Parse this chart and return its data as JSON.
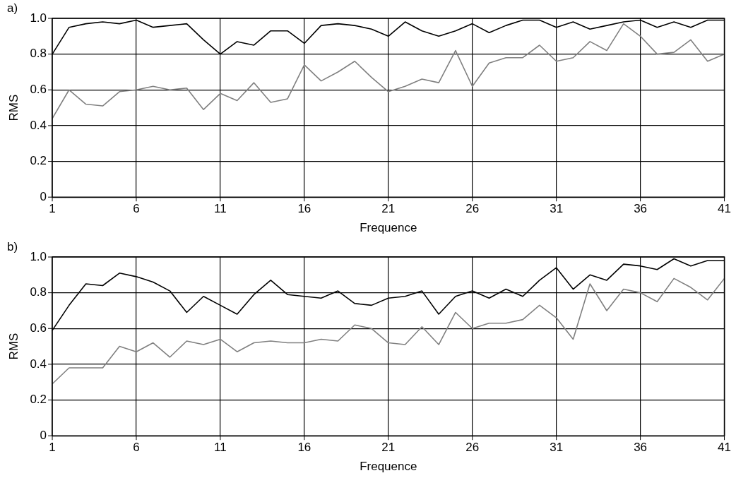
{
  "chart_data": [
    {
      "type": "line",
      "title": "a)",
      "xlabel": "Frequence",
      "ylabel": "RMS",
      "xlim": [
        1,
        41
      ],
      "xticks": [
        1,
        6,
        11,
        16,
        21,
        26,
        31,
        36,
        41
      ],
      "ylim": [
        0,
        1
      ],
      "yticks": [
        0,
        0.2,
        0.4,
        0.6,
        0.8,
        {
          "value": 1,
          "label": "1.0"
        }
      ],
      "grid": true,
      "legend": false,
      "marker": "none",
      "line_style": "solid",
      "x": [
        1,
        2,
        3,
        4,
        5,
        6,
        7,
        8,
        9,
        10,
        11,
        12,
        13,
        14,
        15,
        16,
        17,
        18,
        19,
        20,
        21,
        22,
        23,
        24,
        25,
        26,
        27,
        28,
        29,
        30,
        31,
        32,
        33,
        34,
        35,
        36,
        37,
        38,
        39,
        40,
        41
      ],
      "series": [
        {
          "color": "#000000",
          "values": [
            0.8,
            0.95,
            0.97,
            0.98,
            0.97,
            0.99,
            0.95,
            0.96,
            0.97,
            0.88,
            0.8,
            0.87,
            0.85,
            0.93,
            0.93,
            0.86,
            0.96,
            0.97,
            0.96,
            0.94,
            0.9,
            0.98,
            0.93,
            0.9,
            0.93,
            0.97,
            0.92,
            0.96,
            0.99,
            0.99,
            0.95,
            0.98,
            0.94,
            0.96,
            0.98,
            0.99,
            0.95,
            0.98,
            0.95,
            0.99,
            0.99
          ]
        },
        {
          "color": "#808080",
          "values": [
            0.44,
            0.6,
            0.52,
            0.51,
            0.59,
            0.6,
            0.62,
            0.6,
            0.61,
            0.49,
            0.58,
            0.54,
            0.64,
            0.53,
            0.55,
            0.74,
            0.65,
            0.7,
            0.76,
            0.67,
            0.59,
            0.62,
            0.66,
            0.64,
            0.82,
            0.62,
            0.75,
            0.78,
            0.78,
            0.85,
            0.76,
            0.78,
            0.87,
            0.82,
            0.97,
            0.9,
            0.8,
            0.81,
            0.88,
            0.76,
            0.8
          ]
        }
      ]
    },
    {
      "type": "line",
      "title": "b)",
      "xlabel": "Frequence",
      "ylabel": "RMS",
      "xlim": [
        1,
        41
      ],
      "xticks": [
        1,
        6,
        11,
        16,
        21,
        26,
        31,
        36,
        41
      ],
      "ylim": [
        0,
        1
      ],
      "yticks": [
        0,
        0.2,
        0.4,
        0.6,
        0.8,
        {
          "value": 1,
          "label": "1.0"
        }
      ],
      "grid": true,
      "legend": false,
      "marker": "none",
      "line_style": "solid",
      "x": [
        1,
        2,
        3,
        4,
        5,
        6,
        7,
        8,
        9,
        10,
        11,
        12,
        13,
        14,
        15,
        16,
        17,
        18,
        19,
        20,
        21,
        22,
        23,
        24,
        25,
        26,
        27,
        28,
        29,
        30,
        31,
        32,
        33,
        34,
        35,
        36,
        37,
        38,
        39,
        40,
        41
      ],
      "series": [
        {
          "color": "#000000",
          "values": [
            0.59,
            0.73,
            0.85,
            0.84,
            0.91,
            0.89,
            0.86,
            0.81,
            0.69,
            0.78,
            0.73,
            0.68,
            0.79,
            0.87,
            0.79,
            0.78,
            0.77,
            0.81,
            0.74,
            0.73,
            0.77,
            0.78,
            0.81,
            0.68,
            0.78,
            0.81,
            0.77,
            0.82,
            0.78,
            0.87,
            0.94,
            0.82,
            0.9,
            0.87,
            0.96,
            0.95,
            0.93,
            0.99,
            0.95,
            0.98,
            0.98
          ]
        },
        {
          "color": "#808080",
          "values": [
            0.29,
            0.38,
            0.38,
            0.38,
            0.5,
            0.47,
            0.52,
            0.44,
            0.53,
            0.51,
            0.54,
            0.47,
            0.52,
            0.53,
            0.52,
            0.52,
            0.54,
            0.53,
            0.62,
            0.6,
            0.52,
            0.51,
            0.61,
            0.51,
            0.69,
            0.6,
            0.63,
            0.63,
            0.65,
            0.73,
            0.66,
            0.54,
            0.85,
            0.7,
            0.82,
            0.8,
            0.75,
            0.88,
            0.83,
            0.76,
            0.88
          ]
        }
      ]
    }
  ]
}
